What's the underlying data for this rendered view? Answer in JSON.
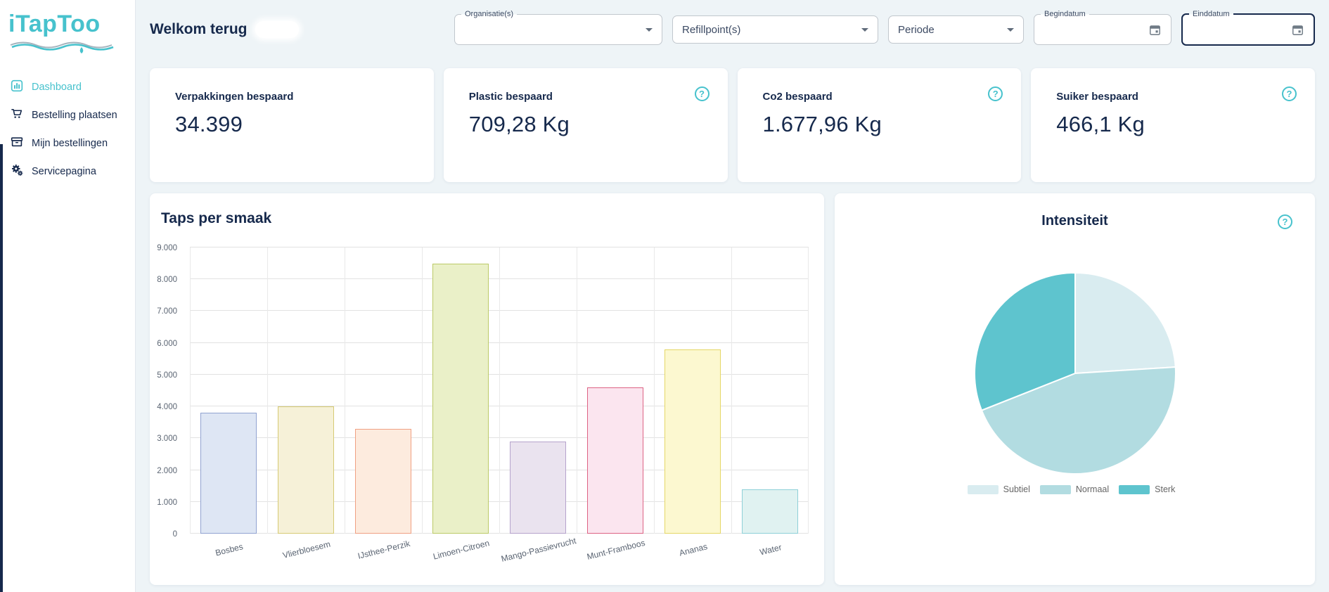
{
  "brand": {
    "logo": "iTapToo",
    "accent": "#47c2cd",
    "navy": "#16294c",
    "background": "#eef4f7"
  },
  "sidebar": {
    "items": [
      {
        "label": "Dashboard",
        "icon": "bar-chart-icon",
        "active": true
      },
      {
        "label": "Bestelling plaatsen",
        "icon": "cart-icon",
        "active": false
      },
      {
        "label": "Mijn bestellingen",
        "icon": "archive-box-icon",
        "active": false
      },
      {
        "label": "Servicepagina",
        "icon": "gears-icon",
        "active": false
      }
    ]
  },
  "header": {
    "welcome": "Welkom terug",
    "filters": {
      "organisatie_label": "Organisatie(s)",
      "refillpoint_placeholder": "Refillpoint(s)",
      "periode_placeholder": "Periode",
      "begindatum_label": "Begindatum",
      "einddatum_label": "Einddatum"
    }
  },
  "stat_cards": [
    {
      "label": "Verpakkingen bespaard",
      "value": "34.399",
      "has_help": false
    },
    {
      "label": "Plastic bespaard",
      "value": "709,28 Kg",
      "has_help": true
    },
    {
      "label": "Co2 bespaard",
      "value": "1.677,96 Kg",
      "has_help": true
    },
    {
      "label": "Suiker bespaard",
      "value": "466,1 Kg",
      "has_help": true
    }
  ],
  "help_glyph": "?",
  "chart_data": [
    {
      "type": "bar",
      "title": "Taps per smaak",
      "categories": [
        "Bosbes",
        "Vlierbloesem",
        "IJsthee-Perzik",
        "Limoen-Citroen",
        "Mango-Passievrucht",
        "Munt-Framboos",
        "Ananas",
        "Water"
      ],
      "values": [
        3800,
        4000,
        3300,
        8500,
        2900,
        4600,
        5800,
        1400
      ],
      "bar_fill": [
        "#dee6f4",
        "#f6f1d8",
        "#fdebde",
        "#eaf0c8",
        "#eae3ef",
        "#fbe5ef",
        "#fcf8d0",
        "#e0f2f1"
      ],
      "bar_border": [
        "#91a3d1",
        "#d6ca74",
        "#f0a083",
        "#bcca67",
        "#b6a3cc",
        "#dd6384",
        "#e5d766",
        "#8ed0d8"
      ],
      "xlabel": "",
      "ylabel": "",
      "ylim": [
        0,
        9000
      ],
      "ytick_step": 1000,
      "ytick_labels": [
        "0",
        "1.000",
        "2.000",
        "3.000",
        "4.000",
        "5.000",
        "6.000",
        "7.000",
        "8.000",
        "9.000"
      ],
      "grid": true,
      "legend_position": "none"
    },
    {
      "type": "pie",
      "title": "Intensiteit",
      "labels": [
        "Subtiel",
        "Normaal",
        "Sterk"
      ],
      "values_percent": [
        24,
        45,
        31
      ],
      "colors": [
        "#d9ecf0",
        "#b2dce1",
        "#5ec4ce"
      ],
      "start_angle_deg": 0,
      "direction": "clockwise",
      "legend_position": "bottom"
    }
  ]
}
